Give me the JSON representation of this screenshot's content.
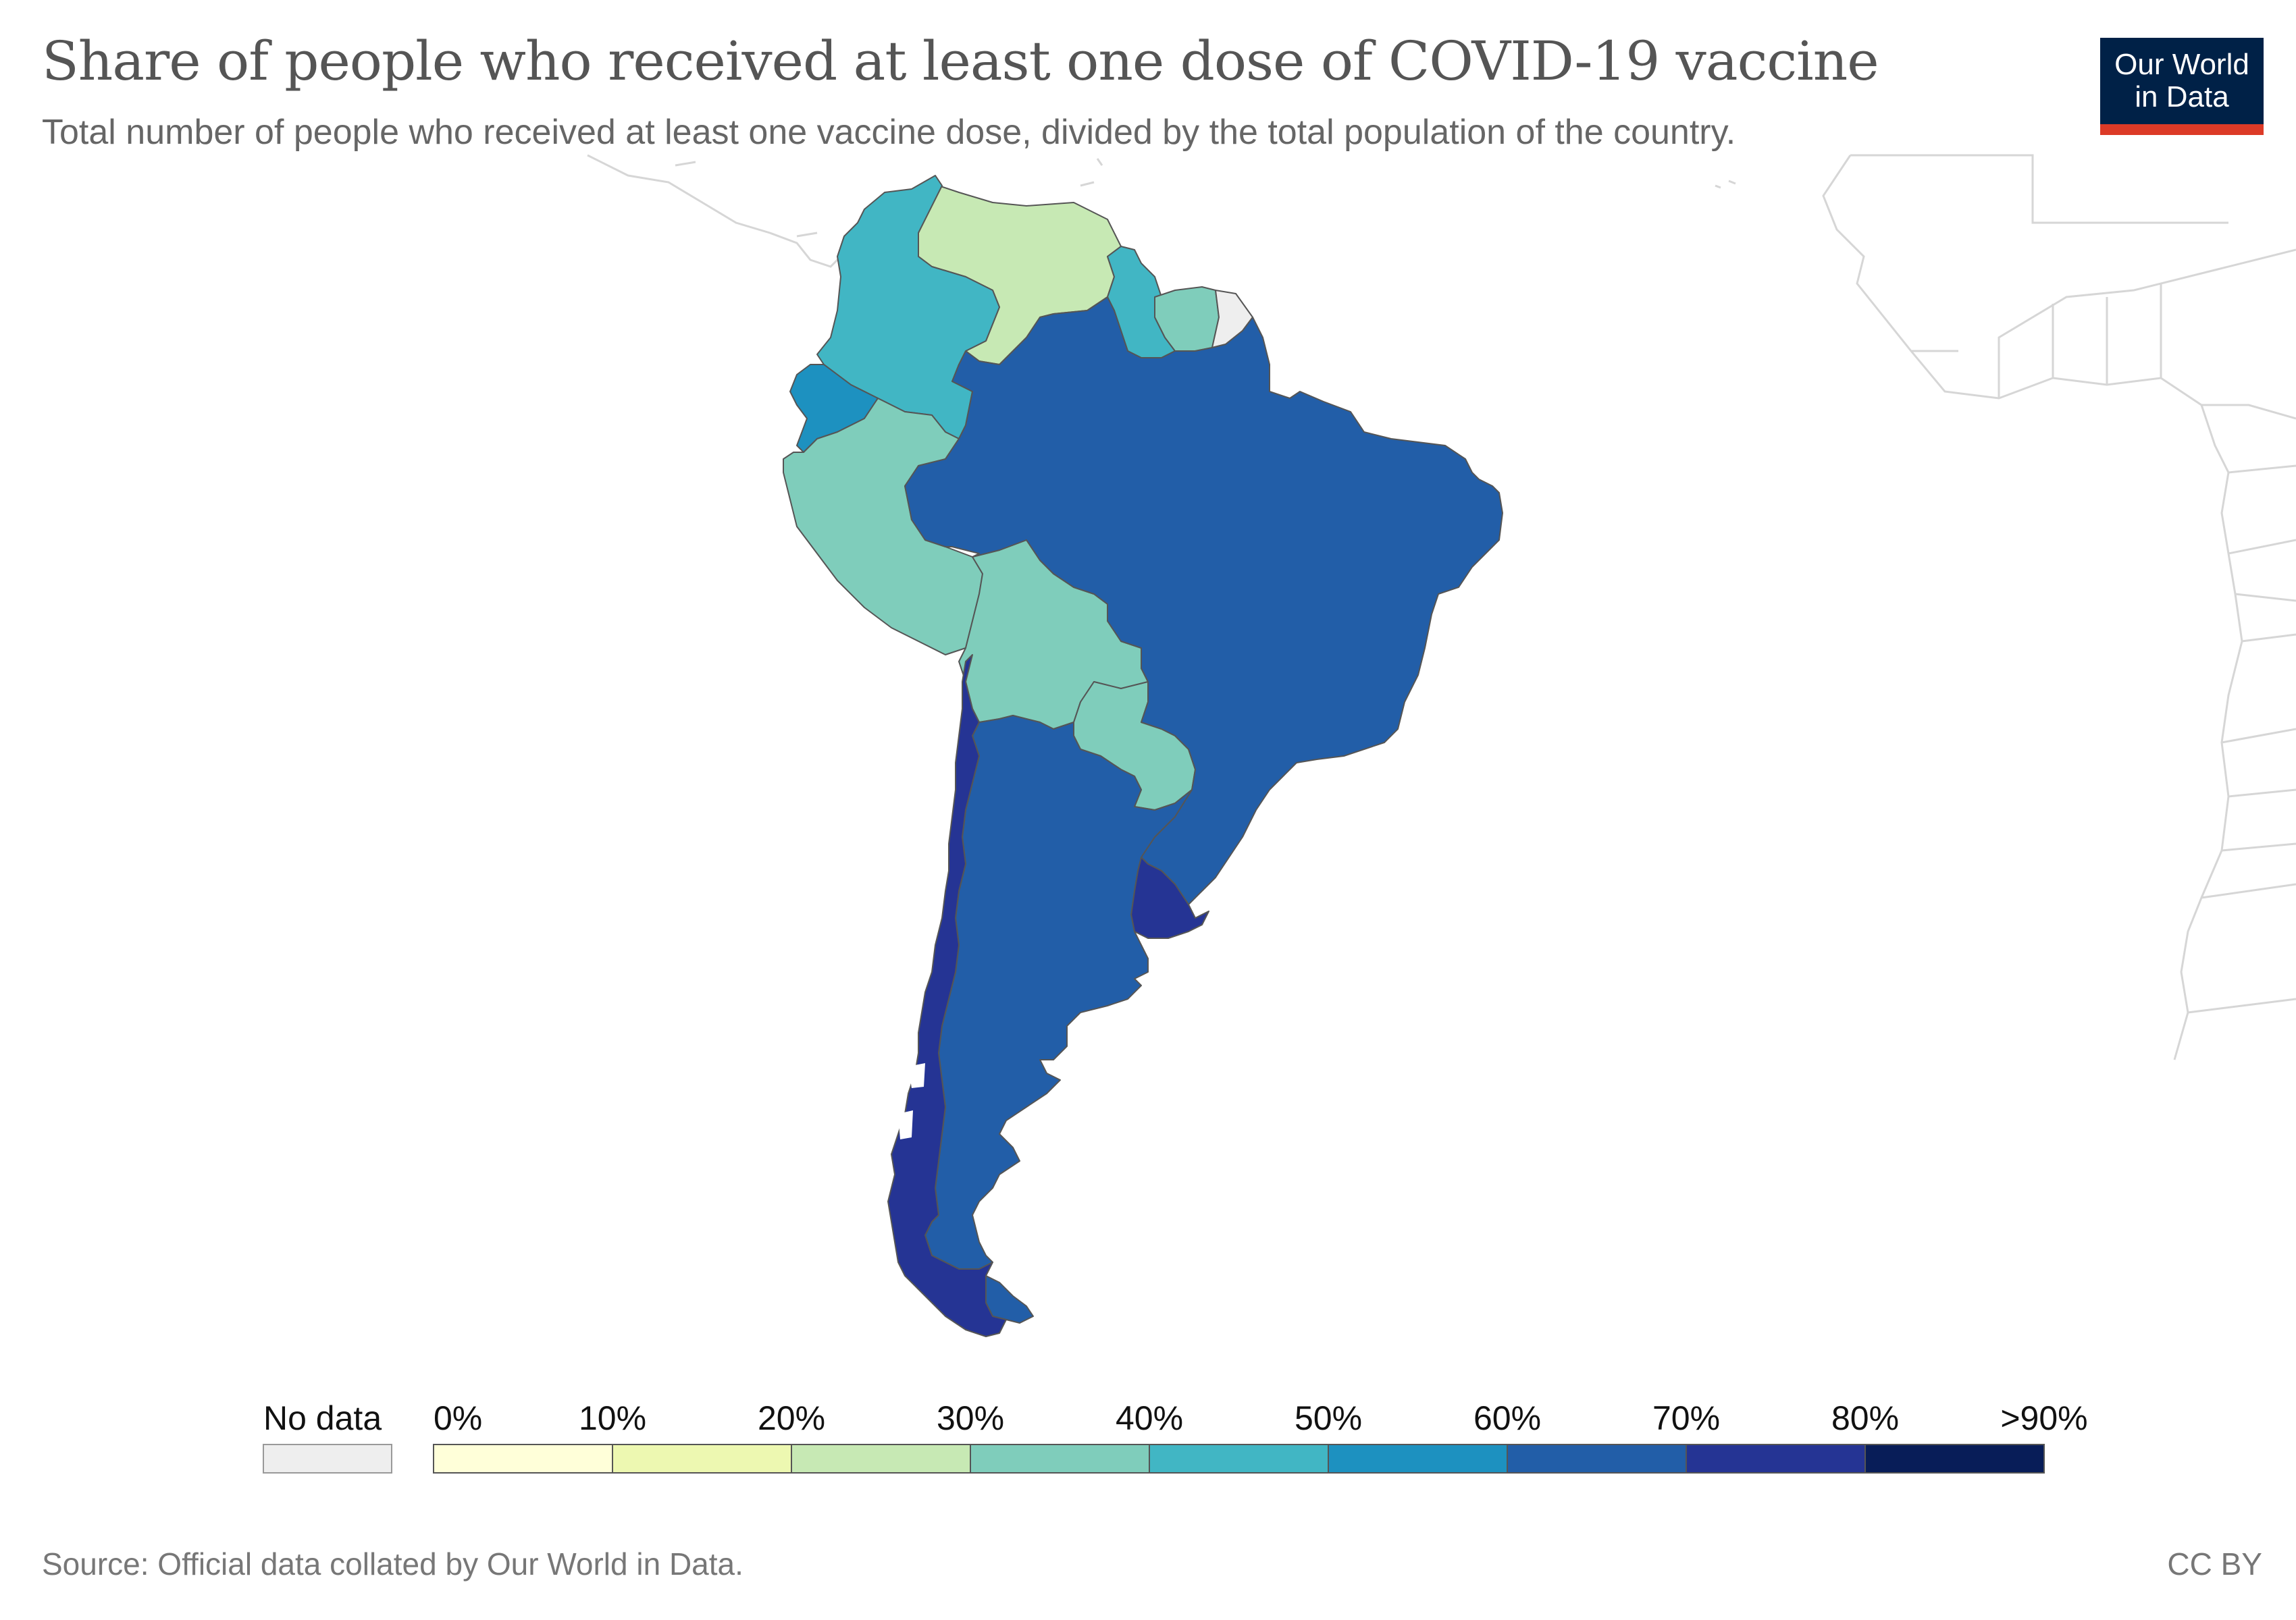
{
  "title": "Share of people who received at least one dose of COVID-19 vaccine",
  "subtitle": "Total number of people who received at least one vaccine dose, divided by the total population of the country.",
  "logo": {
    "line1": "Our World",
    "line2": "in Data"
  },
  "source": "Source: Official data collated by Our World in Data.",
  "license": "CC BY",
  "legend": {
    "no_data_label": "No data",
    "no_data_color": "#eeeeee",
    "tick_labels": [
      "0%",
      "10%",
      "20%",
      "30%",
      "40%",
      "50%",
      "60%",
      "70%",
      "80%",
      ">90%"
    ],
    "bins": [
      {
        "range": "0-10%",
        "color": "#ffffd9"
      },
      {
        "range": "10-20%",
        "color": "#edf8b1"
      },
      {
        "range": "20-30%",
        "color": "#c7e9b4"
      },
      {
        "range": "30-40%",
        "color": "#7fcdbb"
      },
      {
        "range": "40-50%",
        "color": "#41b6c4"
      },
      {
        "range": "50-60%",
        "color": "#1d91c0"
      },
      {
        "range": "60-70%",
        "color": "#225ea8"
      },
      {
        "range": "70-80%",
        "color": "#253494"
      },
      {
        "range": "80-90%",
        "color": "#081d58"
      }
    ]
  },
  "map_data": {
    "region": "South America",
    "countries": [
      {
        "name": "Brazil",
        "bin": "60-70%",
        "color": "#225ea8"
      },
      {
        "name": "Argentina",
        "bin": "60-70%",
        "color": "#225ea8"
      },
      {
        "name": "Chile",
        "bin": "70-80%",
        "color": "#253494"
      },
      {
        "name": "Uruguay",
        "bin": "70-80%",
        "color": "#253494"
      },
      {
        "name": "Ecuador",
        "bin": "50-60%",
        "color": "#1d91c0"
      },
      {
        "name": "Colombia",
        "bin": "40-50%",
        "color": "#41b6c4"
      },
      {
        "name": "Guyana",
        "bin": "40-50%",
        "color": "#41b6c4"
      },
      {
        "name": "Suriname",
        "bin": "30-40%",
        "color": "#7fcdbb"
      },
      {
        "name": "Peru",
        "bin": "30-40%",
        "color": "#7fcdbb"
      },
      {
        "name": "Bolivia",
        "bin": "30-40%",
        "color": "#7fcdbb"
      },
      {
        "name": "Paraguay",
        "bin": "30-40%",
        "color": "#7fcdbb"
      },
      {
        "name": "Venezuela",
        "bin": "20-30%",
        "color": "#c7e9b4"
      },
      {
        "name": "French Guiana",
        "bin": "No data",
        "color": "#eeeeee"
      }
    ]
  }
}
